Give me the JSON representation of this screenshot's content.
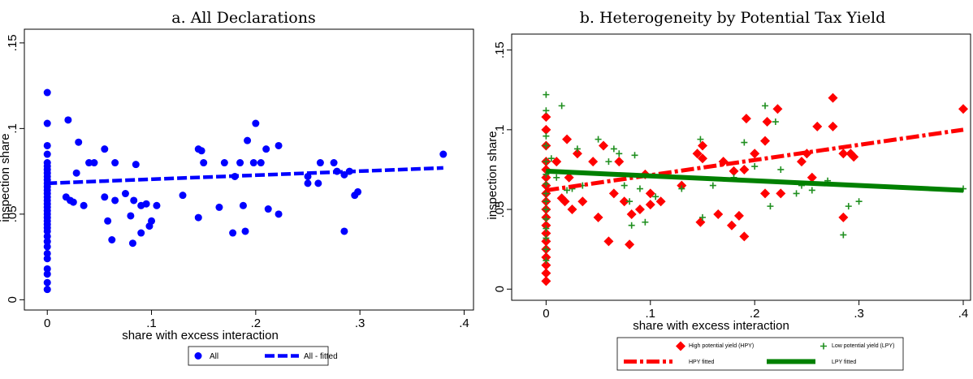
{
  "chart_data": [
    {
      "type": "scatter",
      "title": "a. All Declarations",
      "xlabel": "share with excess interaction",
      "ylabel": "inspection share",
      "xlim": [
        -0.022,
        0.409
      ],
      "ylim": [
        -0.006,
        0.158
      ],
      "xticks": [
        0,
        {
          "value": 0.1,
          "label": ".1"
        },
        {
          "value": 0.2,
          "label": ".2"
        },
        {
          "value": 0.3,
          "label": ".3"
        },
        {
          "value": 0.4,
          "label": ".4"
        }
      ],
      "yticks": [
        0,
        {
          "value": 0.05,
          "label": ".05"
        },
        {
          "value": 0.1,
          "label": ".1"
        },
        {
          "value": 0.15,
          "label": ".15"
        }
      ],
      "series": [
        {
          "name": "All",
          "color": "#0000ff",
          "marker": "circle",
          "x": [
            0,
            0,
            0,
            0,
            0,
            0,
            0,
            0,
            0,
            0,
            0,
            0,
            0,
            0,
            0,
            0,
            0,
            0,
            0,
            0,
            0,
            0,
            0,
            0,
            0,
            0,
            0,
            0,
            0,
            0,
            0,
            0,
            0,
            0,
            0.018,
            0.02,
            0.022,
            0.025,
            0.028,
            0.03,
            0.035,
            0.04,
            0.045,
            0.055,
            0.055,
            0.058,
            0.062,
            0.065,
            0.065,
            0.075,
            0.08,
            0.082,
            0.083,
            0.085,
            0.09,
            0.09,
            0.095,
            0.098,
            0.1,
            0.105,
            0.13,
            0.145,
            0.145,
            0.148,
            0.15,
            0.165,
            0.17,
            0.178,
            0.18,
            0.185,
            0.188,
            0.19,
            0.192,
            0.198,
            0.2,
            0.205,
            0.21,
            0.212,
            0.222,
            0.222,
            0.25,
            0.25,
            0.26,
            0.262,
            0.275,
            0.278,
            0.285,
            0.285,
            0.29,
            0.295,
            0.298,
            0.38
          ],
          "values": [
            0.121,
            0.103,
            0.09,
            0.085,
            0.08,
            0.078,
            0.076,
            0.074,
            0.072,
            0.07,
            0.068,
            0.066,
            0.064,
            0.062,
            0.06,
            0.058,
            0.056,
            0.054,
            0.052,
            0.05,
            0.048,
            0.046,
            0.044,
            0.042,
            0.04,
            0.037,
            0.034,
            0.031,
            0.027,
            0.024,
            0.018,
            0.015,
            0.01,
            0.006,
            0.06,
            0.105,
            0.058,
            0.057,
            0.074,
            0.092,
            0.055,
            0.08,
            0.08,
            0.088,
            0.06,
            0.046,
            0.035,
            0.058,
            0.08,
            0.062,
            0.049,
            0.033,
            0.058,
            0.079,
            0.039,
            0.055,
            0.056,
            0.043,
            0.046,
            0.055,
            0.061,
            0.088,
            0.048,
            0.087,
            0.08,
            0.054,
            0.08,
            0.039,
            0.072,
            0.08,
            0.055,
            0.04,
            0.093,
            0.08,
            0.103,
            0.08,
            0.088,
            0.053,
            0.09,
            0.05,
            0.072,
            0.068,
            0.068,
            0.08,
            0.08,
            0.075,
            0.073,
            0.04,
            0.075,
            0.061,
            0.063,
            0.085
          ]
        },
        {
          "name": "All - fitted",
          "color": "#0000ff",
          "marker": "line",
          "dash": "dash",
          "x": [
            0,
            0.38
          ],
          "values": [
            0.068,
            0.077
          ]
        }
      ]
    },
    {
      "type": "scatter",
      "title": "b. Heterogeneity by Potential Tax Yield",
      "xlabel": "share with excess interaction",
      "ylabel": "inspection share",
      "xlim": [
        -0.033,
        0.407
      ],
      "ylim": [
        -0.007,
        0.16
      ],
      "xticks": [
        0,
        {
          "value": 0.1,
          "label": ".1"
        },
        {
          "value": 0.2,
          "label": ".2"
        },
        {
          "value": 0.3,
          "label": ".3"
        },
        {
          "value": 0.4,
          "label": ".4"
        }
      ],
      "yticks": [
        0,
        {
          "value": 0.05,
          "label": ".05"
        },
        {
          "value": 0.1,
          "label": ".1"
        },
        {
          "value": 0.15,
          "label": ".15"
        }
      ],
      "series": [
        {
          "name": "High potential yield (HPY)",
          "color": "#ff0000",
          "marker": "diamond",
          "x": [
            0,
            0,
            0,
            0,
            0,
            0,
            0,
            0,
            0,
            0,
            0,
            0,
            0,
            0,
            0,
            0,
            0,
            0,
            0,
            0.01,
            0.015,
            0.018,
            0.02,
            0.022,
            0.025,
            0.03,
            0.035,
            0.045,
            0.05,
            0.055,
            0.06,
            0.065,
            0.07,
            0.075,
            0.08,
            0.082,
            0.09,
            0.095,
            0.1,
            0.1,
            0.11,
            0.13,
            0.145,
            0.148,
            0.15,
            0.15,
            0.165,
            0.17,
            0.178,
            0.18,
            0.185,
            0.19,
            0.19,
            0.192,
            0.2,
            0.21,
            0.21,
            0.212,
            0.222,
            0.225,
            0.245,
            0.25,
            0.255,
            0.26,
            0.275,
            0.275,
            0.285,
            0.285,
            0.292,
            0.295,
            0.4
          ],
          "values": [
            0.108,
            0.1,
            0.09,
            0.08,
            0.075,
            0.07,
            0.065,
            0.06,
            0.055,
            0.05,
            0.045,
            0.04,
            0.035,
            0.03,
            0.025,
            0.02,
            0.015,
            0.01,
            0.005,
            0.08,
            0.057,
            0.055,
            0.094,
            0.07,
            0.05,
            0.085,
            0.055,
            0.08,
            0.045,
            0.09,
            0.03,
            0.06,
            0.08,
            0.055,
            0.028,
            0.047,
            0.05,
            0.072,
            0.06,
            0.053,
            0.055,
            0.065,
            0.085,
            0.042,
            0.09,
            0.082,
            0.047,
            0.08,
            0.04,
            0.074,
            0.046,
            0.075,
            0.033,
            0.107,
            0.085,
            0.06,
            0.093,
            0.105,
            0.113,
            0.06,
            0.08,
            0.085,
            0.07,
            0.102,
            0.12,
            0.102,
            0.045,
            0.085,
            0.085,
            0.083,
            0.113
          ]
        },
        {
          "name": "Low potential yield (LPY)",
          "color": "#1f8f1f",
          "marker": "plus",
          "x": [
            0,
            0,
            0,
            0,
            0,
            0,
            0,
            0,
            0,
            0,
            0,
            0,
            0,
            0,
            0,
            0.005,
            0.01,
            0.015,
            0.02,
            0.025,
            0.03,
            0.035,
            0.05,
            0.06,
            0.065,
            0.07,
            0.075,
            0.08,
            0.082,
            0.085,
            0.09,
            0.095,
            0.105,
            0.13,
            0.148,
            0.15,
            0.16,
            0.18,
            0.19,
            0.2,
            0.21,
            0.215,
            0.22,
            0.225,
            0.24,
            0.245,
            0.255,
            0.27,
            0.285,
            0.29,
            0.3,
            0.4
          ],
          "values": [
            0.122,
            0.112,
            0.096,
            0.09,
            0.08,
            0.072,
            0.066,
            0.06,
            0.055,
            0.05,
            0.044,
            0.038,
            0.032,
            0.025,
            0.018,
            0.082,
            0.07,
            0.115,
            0.062,
            0.063,
            0.088,
            0.065,
            0.094,
            0.08,
            0.088,
            0.085,
            0.065,
            0.055,
            0.04,
            0.084,
            0.063,
            0.042,
            0.058,
            0.063,
            0.094,
            0.045,
            0.065,
            0.07,
            0.092,
            0.077,
            0.115,
            0.052,
            0.105,
            0.075,
            0.06,
            0.065,
            0.062,
            0.068,
            0.034,
            0.052,
            0.055,
            0.063
          ]
        },
        {
          "name": "HPY fitted",
          "color": "#ff0000",
          "marker": "line",
          "dash": "dashdot",
          "x": [
            0,
            0.4
          ],
          "values": [
            0.062,
            0.1
          ]
        },
        {
          "name": "LPY fitted",
          "color": "#008000",
          "marker": "line",
          "dash": "solid",
          "x": [
            0,
            0.4
          ],
          "values": [
            0.074,
            0.062
          ]
        }
      ]
    }
  ]
}
